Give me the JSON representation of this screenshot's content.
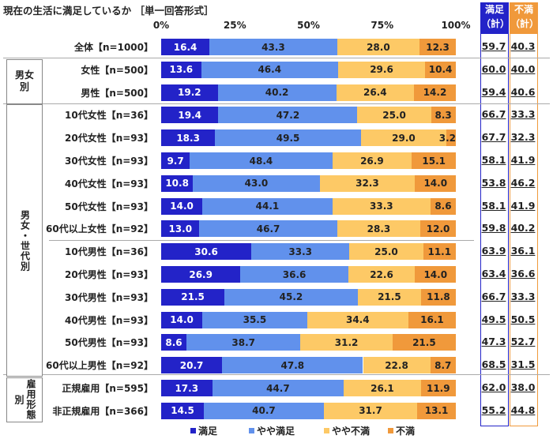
{
  "chart_data": {
    "type": "bar",
    "stacked": true,
    "orientation": "horizontal",
    "title": "現在の生活に満足しているか ［単一回答形式］",
    "xlim": [
      0,
      100
    ],
    "x_ticks": [
      "0%",
      "25%",
      "50%",
      "75%",
      "100%"
    ],
    "legend_position": "bottom",
    "series": [
      {
        "name": "満足",
        "color": "#2323c8"
      },
      {
        "name": "やや満足",
        "color": "#6191ec"
      },
      {
        "name": "やや不満",
        "color": "#fdc966"
      },
      {
        "name": "不満",
        "color": "#f0993b"
      }
    ],
    "total_headers": [
      {
        "label_line1": "満足",
        "label_line2": "（計）",
        "color": "#2323c8"
      },
      {
        "label_line1": "不満",
        "label_line2": "（計）",
        "color": "#f0993b"
      }
    ],
    "groups": [
      {
        "label": "男女別",
        "rows": [
          1,
          2
        ]
      },
      {
        "label": "男女・世代別",
        "rows": [
          3,
          4,
          5,
          6,
          7,
          8,
          9,
          10,
          11,
          12,
          13,
          14
        ]
      },
      {
        "label": "雇用形態別",
        "rows": [
          15,
          16
        ]
      }
    ],
    "rows": [
      {
        "label": "全体【n=1000】",
        "values": [
          16.4,
          43.3,
          28.0,
          12.3
        ],
        "satisfied_total": "59.7",
        "dissatisfied_total": "40.3"
      },
      {
        "label": "女性【n=500】",
        "values": [
          13.6,
          46.4,
          29.6,
          10.4
        ],
        "satisfied_total": "60.0",
        "dissatisfied_total": "40.0"
      },
      {
        "label": "男性【n=500】",
        "values": [
          19.2,
          40.2,
          26.4,
          14.2
        ],
        "satisfied_total": "59.4",
        "dissatisfied_total": "40.6"
      },
      {
        "label": "10代女性【n=36】",
        "values": [
          19.4,
          47.2,
          25.0,
          8.3
        ],
        "satisfied_total": "66.7",
        "dissatisfied_total": "33.3"
      },
      {
        "label": "20代女性【n=93】",
        "values": [
          18.3,
          49.5,
          29.0,
          3.2
        ],
        "satisfied_total": "67.7",
        "dissatisfied_total": "32.3"
      },
      {
        "label": "30代女性【n=93】",
        "values": [
          9.7,
          48.4,
          26.9,
          15.1
        ],
        "satisfied_total": "58.1",
        "dissatisfied_total": "41.9"
      },
      {
        "label": "40代女性【n=93】",
        "values": [
          10.8,
          43.0,
          32.3,
          14.0
        ],
        "satisfied_total": "53.8",
        "dissatisfied_total": "46.2"
      },
      {
        "label": "50代女性【n=93】",
        "values": [
          14.0,
          44.1,
          33.3,
          8.6
        ],
        "satisfied_total": "58.1",
        "dissatisfied_total": "41.9"
      },
      {
        "label": "60代以上女性【n=92】",
        "values": [
          13.0,
          46.7,
          28.3,
          12.0
        ],
        "satisfied_total": "59.8",
        "dissatisfied_total": "40.2"
      },
      {
        "label": "10代男性【n=36】",
        "values": [
          30.6,
          33.3,
          25.0,
          11.1
        ],
        "satisfied_total": "63.9",
        "dissatisfied_total": "36.1"
      },
      {
        "label": "20代男性【n=93】",
        "values": [
          26.9,
          36.6,
          22.6,
          14.0
        ],
        "satisfied_total": "63.4",
        "dissatisfied_total": "36.6"
      },
      {
        "label": "30代男性【n=93】",
        "values": [
          21.5,
          45.2,
          21.5,
          11.8
        ],
        "satisfied_total": "66.7",
        "dissatisfied_total": "33.3"
      },
      {
        "label": "40代男性【n=93】",
        "values": [
          14.0,
          35.5,
          34.4,
          16.1
        ],
        "satisfied_total": "49.5",
        "dissatisfied_total": "50.5"
      },
      {
        "label": "50代男性【n=93】",
        "values": [
          8.6,
          38.7,
          31.2,
          21.5
        ],
        "satisfied_total": "47.3",
        "dissatisfied_total": "52.7"
      },
      {
        "label": "60代以上男性【n=92】",
        "values": [
          20.7,
          47.8,
          22.8,
          8.7
        ],
        "satisfied_total": "68.5",
        "dissatisfied_total": "31.5"
      },
      {
        "label": "正規雇用【n=595】",
        "values": [
          17.3,
          44.7,
          26.1,
          11.9
        ],
        "satisfied_total": "62.0",
        "dissatisfied_total": "38.0"
      },
      {
        "label": "非正規雇用【n=366】",
        "values": [
          14.5,
          40.7,
          31.7,
          13.1
        ],
        "satisfied_total": "55.2",
        "dissatisfied_total": "44.8"
      }
    ]
  }
}
